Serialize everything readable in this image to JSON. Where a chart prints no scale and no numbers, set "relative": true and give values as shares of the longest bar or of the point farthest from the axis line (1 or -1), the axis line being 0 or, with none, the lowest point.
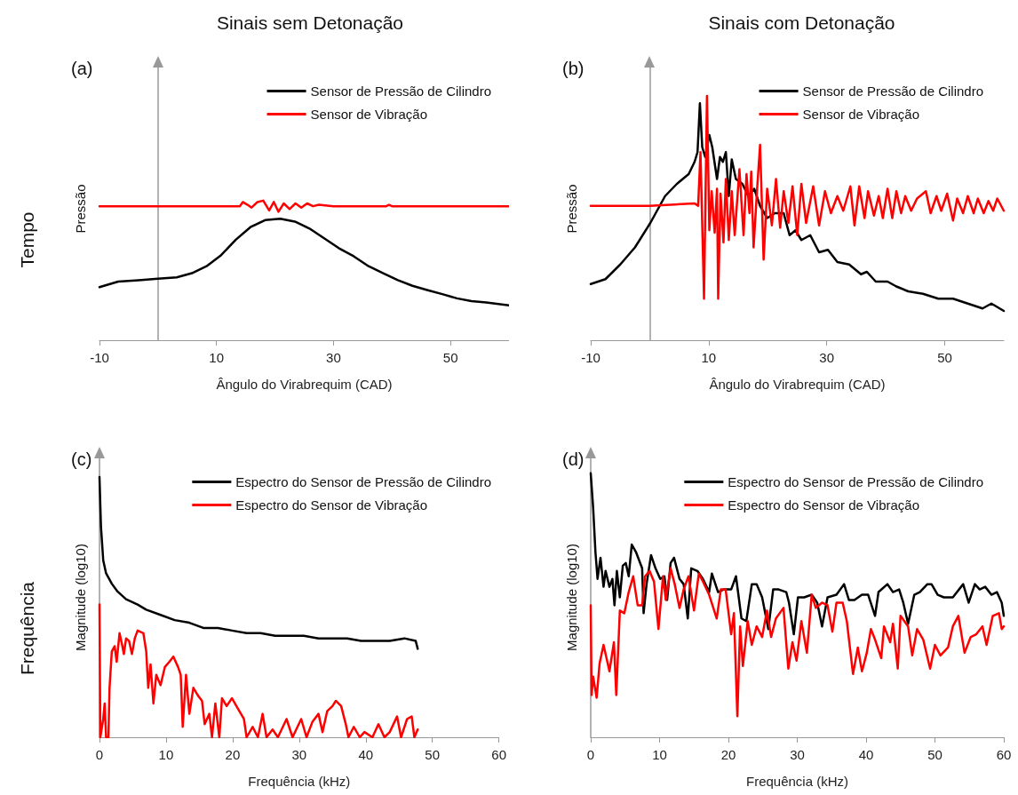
{
  "chart_data": [
    {
      "type": "line",
      "title": "Sinais sem Detonação",
      "xlabel": "Ângulo do Virabrequim (CAD)",
      "ylabel": "Pressão",
      "annotations": [
        "(a)",
        "Tempo"
      ],
      "xlim": [
        -10,
        60
      ],
      "xticks": [
        -10,
        10,
        30,
        50
      ],
      "relative": true,
      "legend": "top right",
      "marker": "none",
      "series": [
        {
          "name": "Sensor de Pressão de Cilindro",
          "color": "#000000",
          "x": [
            -10,
            -6.8,
            -3.3,
            0,
            3.2,
            5.8,
            8.3,
            10.8,
            13.3,
            15.8,
            18.3,
            20.9,
            23.4,
            25.9,
            28.4,
            30.9,
            33.5,
            36.0,
            38.5,
            41.0,
            43.5,
            46.0,
            48.6,
            51.1,
            53.6,
            56.1,
            60
          ],
          "values": [
            0.38,
            0.42,
            0.43,
            0.44,
            0.45,
            0.48,
            0.53,
            0.61,
            0.72,
            0.81,
            0.86,
            0.87,
            0.85,
            0.8,
            0.73,
            0.66,
            0.6,
            0.53,
            0.48,
            0.43,
            0.39,
            0.36,
            0.33,
            0.3,
            0.28,
            0.27,
            0.25
          ]
        },
        {
          "name": "Sensor de Vibração",
          "color": "#ff0000",
          "x": [
            -10,
            0,
            14,
            14.5,
            15.3,
            16,
            17,
            18,
            19,
            19.8,
            20.6,
            21.5,
            22.5,
            23.5,
            24.5,
            25.5,
            26.5,
            27.5,
            30,
            39,
            39.5,
            40,
            60
          ],
          "values": [
            0.96,
            0.96,
            0.96,
            0.99,
            0.97,
            0.95,
            0.99,
            1.0,
            0.93,
            0.99,
            0.92,
            0.98,
            0.94,
            0.98,
            0.95,
            0.98,
            0.96,
            0.97,
            0.96,
            0.96,
            0.97,
            0.96,
            0.96
          ]
        }
      ]
    },
    {
      "type": "line",
      "title": "Sinais com Detonação",
      "xlabel": "Ângulo do Virabrequim (CAD)",
      "ylabel": "Pressão",
      "annotations": [
        "(b)"
      ],
      "xlim": [
        -10,
        60
      ],
      "xticks": [
        -10,
        10,
        30,
        50
      ],
      "relative": true,
      "legend": "top right",
      "marker": "none",
      "series": [
        {
          "name": "Sensor de Pressão de Cilindro",
          "color": "#000000",
          "x": [
            -10,
            -7.5,
            -5,
            -2.5,
            0.1,
            2.6,
            4.6,
            6.6,
            7.6,
            8.1,
            8.5,
            8.9,
            9.4,
            10.1,
            10.6,
            11.4,
            11.9,
            12.4,
            12.9,
            13.4,
            13.9,
            14.6,
            15.7,
            16.7,
            17.7,
            18.7,
            19.9,
            21.2,
            22.7,
            23.7,
            24.7,
            25.7,
            27.2,
            28.7,
            30.2,
            31.8,
            33.8,
            35.8,
            36.8,
            38.3,
            40.3,
            41.8,
            43.8,
            46.3,
            48.9,
            51.4,
            53.9,
            56.4,
            57.9,
            60
          ],
          "values": [
            0.23,
            0.25,
            0.31,
            0.38,
            0.48,
            0.59,
            0.64,
            0.68,
            0.73,
            0.77,
            0.97,
            0.79,
            0.75,
            0.84,
            0.79,
            0.66,
            0.75,
            0.73,
            0.77,
            0.59,
            0.74,
            0.66,
            0.64,
            0.59,
            0.62,
            0.55,
            0.5,
            0.52,
            0.52,
            0.43,
            0.45,
            0.41,
            0.43,
            0.36,
            0.37,
            0.32,
            0.31,
            0.27,
            0.28,
            0.24,
            0.24,
            0.22,
            0.2,
            0.19,
            0.17,
            0.17,
            0.15,
            0.13,
            0.15,
            0.12
          ]
        },
        {
          "name": "Sensor de Vibração",
          "color": "#ff0000",
          "x": [
            -10,
            0,
            7.6,
            8.2,
            8.6,
            9.2,
            9.7,
            10.1,
            10.5,
            11.0,
            11.4,
            11.6,
            12.0,
            12.5,
            12.9,
            13.4,
            13.9,
            14.4,
            15.2,
            15.9,
            16.4,
            16.9,
            17.2,
            17.6,
            18.2,
            18.7,
            19.3,
            19.9,
            20.7,
            21.4,
            22.1,
            22.7,
            23.5,
            24.2,
            25.0,
            25.7,
            26.5,
            27.7,
            28.7,
            29.7,
            30.7,
            31.8,
            32.8,
            34.0,
            34.7,
            35.5,
            36.4,
            37.0,
            38.0,
            38.8,
            39.5,
            40.3,
            41.1,
            41.8,
            42.6,
            43.3,
            44.3,
            45.3,
            46.8,
            47.6,
            48.6,
            49.4,
            50.4,
            51.4,
            52.1,
            53.1,
            53.9,
            54.9,
            55.6,
            56.6,
            57.4,
            58.2,
            58.9,
            60
          ],
          "values": [
            0.55,
            0.55,
            0.56,
            0.55,
            0.77,
            0.17,
            1.0,
            0.45,
            0.61,
            0.44,
            0.62,
            0.17,
            0.6,
            0.4,
            0.66,
            0.41,
            0.61,
            0.43,
            0.7,
            0.43,
            0.68,
            0.52,
            0.69,
            0.38,
            0.62,
            0.8,
            0.33,
            0.62,
            0.47,
            0.66,
            0.46,
            0.61,
            0.48,
            0.63,
            0.43,
            0.64,
            0.48,
            0.63,
            0.47,
            0.61,
            0.52,
            0.59,
            0.53,
            0.63,
            0.47,
            0.63,
            0.5,
            0.61,
            0.51,
            0.59,
            0.5,
            0.62,
            0.5,
            0.61,
            0.52,
            0.59,
            0.53,
            0.58,
            0.61,
            0.52,
            0.59,
            0.53,
            0.6,
            0.49,
            0.58,
            0.52,
            0.59,
            0.52,
            0.58,
            0.52,
            0.57,
            0.53,
            0.58,
            0.53
          ]
        }
      ]
    },
    {
      "type": "line",
      "xlabel": "Frequência (kHz)",
      "ylabel": "Magnitude (log10)",
      "annotations": [
        "(c)",
        "Frequência"
      ],
      "xlim": [
        0,
        60
      ],
      "xticks": [
        0,
        10,
        20,
        30,
        40,
        50,
        60
      ],
      "relative": true,
      "legend": "top right",
      "marker": "none",
      "series": [
        {
          "name": "Espectro do Sensor de Pressão de Cilindro",
          "color": "#000000",
          "x": [
            0,
            0.22,
            0.56,
            0.99,
            1.85,
            2.71,
            4.0,
            5.73,
            7.02,
            9.17,
            11.3,
            13.5,
            15.6,
            17.8,
            19.9,
            22.1,
            24.2,
            26.4,
            28.5,
            30.7,
            32.9,
            35.0,
            37.2,
            39.3,
            41.5,
            43.6,
            45.8,
            47.5,
            47.8
          ],
          "values": [
            1.0,
            0.81,
            0.68,
            0.63,
            0.59,
            0.56,
            0.53,
            0.51,
            0.49,
            0.47,
            0.45,
            0.44,
            0.42,
            0.42,
            0.41,
            0.4,
            0.4,
            0.39,
            0.39,
            0.39,
            0.38,
            0.38,
            0.38,
            0.37,
            0.37,
            0.37,
            0.38,
            0.37,
            0.34
          ]
        },
        {
          "name": "Espectro do Sensor de Vibração",
          "color": "#ff0000",
          "x": [
            0,
            0.13,
            0.56,
            0.78,
            0.99,
            1.34,
            1.51,
            1.85,
            2.28,
            2.58,
            3.01,
            3.36,
            3.66,
            4.0,
            4.44,
            4.87,
            5.3,
            5.73,
            6.59,
            7.02,
            7.32,
            7.67,
            8.1,
            8.53,
            9.17,
            9.82,
            10.5,
            11.1,
            11.8,
            12.2,
            12.5,
            13.0,
            13.5,
            14.1,
            14.8,
            15.4,
            15.8,
            16.5,
            16.9,
            17.4,
            18.0,
            18.4,
            19.1,
            19.9,
            20.8,
            21.7,
            22.1,
            23.0,
            23.8,
            24.5,
            25.1,
            26.0,
            26.8,
            28.1,
            29.0,
            30.3,
            31.1,
            32.0,
            32.9,
            33.5,
            34.2,
            35.0,
            35.5,
            36.3,
            37.0,
            37.4,
            38.2,
            39.1,
            39.8,
            41.0,
            41.9,
            42.8,
            43.6,
            44.7,
            45.3,
            46.2,
            46.9,
            47.3,
            47.8
          ],
          "values": [
            0.51,
            0,
            0.07,
            0.13,
            0,
            0,
            0.19,
            0.33,
            0.35,
            0.29,
            0.4,
            0.36,
            0.32,
            0.38,
            0.37,
            0.32,
            0.38,
            0.41,
            0.4,
            0.33,
            0.19,
            0.28,
            0.13,
            0.24,
            0.2,
            0.27,
            0.29,
            0.31,
            0.27,
            0.24,
            0.04,
            0.24,
            0.09,
            0.19,
            0.16,
            0.14,
            0.05,
            0.09,
            0,
            0.13,
            0,
            0.15,
            0.12,
            0.15,
            0.11,
            0.07,
            0,
            0.04,
            0,
            0.09,
            0,
            0.03,
            0,
            0.07,
            0,
            0.07,
            0,
            0.06,
            0.09,
            0.02,
            0.1,
            0.12,
            0.14,
            0.12,
            0.05,
            0,
            0.04,
            0,
            0.02,
            0,
            0.05,
            0,
            0.02,
            0.08,
            0,
            0.07,
            0.08,
            0,
            0.03
          ]
        }
      ]
    },
    {
      "type": "line",
      "xlabel": "Frequência (kHz)",
      "ylabel": "Magnitude (log10)",
      "annotations": [
        "(d)"
      ],
      "xlim": [
        0,
        60
      ],
      "xticks": [
        0,
        10,
        20,
        30,
        40,
        50,
        60
      ],
      "relative": true,
      "legend": "top right",
      "marker": "none",
      "series": [
        {
          "name": "Espectro do Sensor de Pressão de Cilindro",
          "color": "#000000",
          "x": [
            0,
            0.35,
            0.69,
            0.99,
            1.42,
            1.86,
            2.16,
            2.72,
            3.15,
            3.45,
            3.8,
            4.23,
            4.66,
            5.09,
            5.52,
            5.96,
            6.6,
            7.47,
            7.68,
            8.11,
            8.76,
            9.41,
            10.1,
            10.7,
            11.1,
            11.6,
            12.1,
            12.9,
            13.5,
            14.1,
            14.6,
            15.5,
            16.3,
            17.2,
            17.6,
            18.5,
            19.3,
            20.4,
            21.1,
            21.9,
            22.6,
            23.4,
            24.1,
            24.9,
            25.8,
            26.5,
            27.3,
            28.4,
            28.8,
            29.5,
            30.1,
            31.0,
            32.1,
            32.9,
            33.6,
            34.4,
            35.7,
            36.8,
            37.5,
            38.3,
            39.4,
            40.3,
            41.3,
            41.8,
            43.1,
            43.9,
            44.8,
            45.4,
            46.1,
            47.0,
            47.8,
            48.9,
            49.5,
            50.4,
            51.3,
            52.6,
            54.1,
            54.9,
            55.8,
            56.5,
            57.3,
            58.2,
            59.0,
            59.7,
            60
          ],
          "values": [
            1.0,
            0.87,
            0.7,
            0.6,
            0.68,
            0.57,
            0.63,
            0.57,
            0.6,
            0.5,
            0.63,
            0.53,
            0.65,
            0.66,
            0.61,
            0.73,
            0.7,
            0.64,
            0.47,
            0.58,
            0.69,
            0.64,
            0.6,
            0.61,
            0.52,
            0.66,
            0.68,
            0.6,
            0.58,
            0.45,
            0.64,
            0.63,
            0.6,
            0.55,
            0.62,
            0.55,
            0.56,
            0.56,
            0.61,
            0.45,
            0.44,
            0.58,
            0.58,
            0.53,
            0.41,
            0.56,
            0.56,
            0.55,
            0.51,
            0.39,
            0.53,
            0.53,
            0.54,
            0.51,
            0.42,
            0.53,
            0.54,
            0.58,
            0.52,
            0.52,
            0.54,
            0.54,
            0.46,
            0.55,
            0.58,
            0.55,
            0.56,
            0.51,
            0.43,
            0.54,
            0.55,
            0.58,
            0.58,
            0.54,
            0.53,
            0.53,
            0.58,
            0.51,
            0.58,
            0.56,
            0.57,
            0.54,
            0.55,
            0.51,
            0.46
          ]
        },
        {
          "name": "Espectro do Sensor de Vibração",
          "color": "#ff0000",
          "x": [
            0,
            0.13,
            0.35,
            0.86,
            1.29,
            1.86,
            2.29,
            2.72,
            3.37,
            3.71,
            4.23,
            4.88,
            5.52,
            6.17,
            6.82,
            7.47,
            7.9,
            8.55,
            9.19,
            9.84,
            10.5,
            10.9,
            11.6,
            12.2,
            12.9,
            13.5,
            14.2,
            15.0,
            15.7,
            16.3,
            17.2,
            18.3,
            18.9,
            19.6,
            20.4,
            20.8,
            21.3,
            21.7,
            22.1,
            22.8,
            23.4,
            24.1,
            24.9,
            25.6,
            26.2,
            26.9,
            28.0,
            28.7,
            29.3,
            29.9,
            30.6,
            31.4,
            32.1,
            32.7,
            33.6,
            34.4,
            35.1,
            35.7,
            36.6,
            37.2,
            38.1,
            38.8,
            39.4,
            40.1,
            40.7,
            41.3,
            42.2,
            42.6,
            43.5,
            43.9,
            44.6,
            45.0,
            46.1,
            46.7,
            47.4,
            48.3,
            49.3,
            50.0,
            50.8,
            51.9,
            52.6,
            53.4,
            54.3,
            55.2,
            56.0,
            56.9,
            57.5,
            58.4,
            59.3,
            59.7,
            60
          ],
          "values": [
            0.5,
            0.16,
            0.23,
            0.15,
            0.28,
            0.35,
            0.3,
            0.25,
            0.36,
            0.16,
            0.48,
            0.47,
            0.55,
            0.61,
            0.5,
            0.5,
            0.61,
            0.63,
            0.59,
            0.41,
            0.61,
            0.52,
            0.64,
            0.58,
            0.49,
            0.56,
            0.61,
            0.48,
            0.62,
            0.59,
            0.54,
            0.45,
            0.56,
            0.56,
            0.39,
            0.47,
            0.08,
            0.42,
            0.27,
            0.44,
            0.35,
            0.42,
            0.38,
            0.48,
            0.38,
            0.45,
            0.49,
            0.26,
            0.36,
            0.29,
            0.44,
            0.32,
            0.54,
            0.49,
            0.51,
            0.5,
            0.4,
            0.51,
            0.51,
            0.44,
            0.24,
            0.34,
            0.25,
            0.32,
            0.41,
            0.37,
            0.3,
            0.42,
            0.36,
            0.43,
            0.26,
            0.46,
            0.42,
            0.31,
            0.41,
            0.37,
            0.26,
            0.35,
            0.31,
            0.34,
            0.42,
            0.46,
            0.32,
            0.38,
            0.39,
            0.42,
            0.35,
            0.46,
            0.47,
            0.41,
            0.42
          ]
        }
      ]
    }
  ]
}
